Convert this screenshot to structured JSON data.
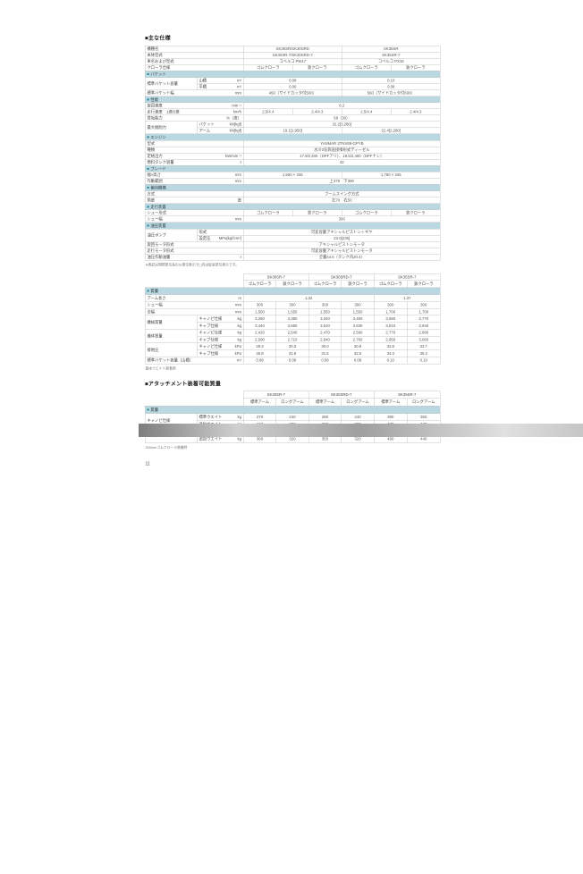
{
  "page": {
    "title": "■主な仕様",
    "attachment_title": "■アタッチメント装着可能質量",
    "footnote_si": "※表記は国際単位系のSI単位表示で[ ]内は従来単位表示です。",
    "footnote_base_weight": "基本ウエイト装着時",
    "footnote_rubber_crawler": "300mmゴムクローラ装着時",
    "page_number": "11"
  },
  "colors": {
    "section_band": "#b9d8e1",
    "section_marker": "#15808f",
    "table_border": "#c6c6c6",
    "text": "#444444"
  },
  "tables": {
    "spec": {
      "rows": [
        {
          "cells": [
            {
              "t": "機種名",
              "k": "h",
              "cs": 2
            },
            {
              "t": "SK30SR/SK30SRD",
              "cs": 2
            },
            {
              "t": "SK35SR",
              "cs": 2
            }
          ]
        },
        {
          "cells": [
            {
              "t": "本体型式",
              "k": "h",
              "cs": 2
            },
            {
              "t": "SK30SR-7/SK30SRD-7",
              "cs": 2
            },
            {
              "t": "SK35SR-7",
              "cs": 2
            }
          ]
        },
        {
          "cells": [
            {
              "t": "車名および型式",
              "k": "h",
              "cs": 2
            },
            {
              "t": "コベルコ PW17",
              "cs": 2
            },
            {
              "t": "コベルコ PX18",
              "cs": 2
            }
          ]
        },
        {
          "cells": [
            {
              "t": "クローラ仕様",
              "k": "h",
              "cs": 2
            },
            {
              "t": "ゴムクローラ"
            },
            {
              "t": "鉄クローラ"
            },
            {
              "t": "ゴムクローラ"
            },
            {
              "t": "鉄クローラ"
            }
          ]
        },
        {
          "band": "バケット"
        },
        {
          "cells": [
            {
              "t": "標準バケット容量",
              "k": "h",
              "rs": 2
            },
            {
              "t": "山積",
              "u": "m³",
              "k": "s"
            },
            {
              "t": "0.08",
              "cs": 2
            },
            {
              "t": "0.10",
              "cs": 2
            }
          ]
        },
        {
          "cells": [
            {
              "t": "平積",
              "u": "m³",
              "k": "s"
            },
            {
              "t": "0.06",
              "cs": 2
            },
            {
              "t": "0.08",
              "cs": 2
            }
          ]
        },
        {
          "cells": [
            {
              "t": "標準バケット幅",
              "u": "mm",
              "k": "h",
              "cs": 2
            },
            {
              "t": "450（サイドカッタ付500）",
              "cs": 2
            },
            {
              "t": "560（サイドカッタ付600）",
              "cs": 2
            }
          ]
        },
        {
          "band": "性能"
        },
        {
          "cells": [
            {
              "t": "旋回速度",
              "u": "min⁻¹",
              "k": "h",
              "cs": 2
            },
            {
              "t": "8.2",
              "cs": 4
            }
          ]
        },
        {
          "cells": [
            {
              "t": "走行速度　1速/2速",
              "u": "km/h",
              "k": "h",
              "cs": 2
            },
            {
              "t": "2.5/4.4"
            },
            {
              "t": "2.4/4.3"
            },
            {
              "t": "2.5/4.4"
            },
            {
              "t": "2.4/4.3"
            }
          ]
        },
        {
          "cells": [
            {
              "t": "登坂能力",
              "u": "%（度）",
              "k": "h",
              "cs": 2
            },
            {
              "t": "58（30）",
              "cs": 4
            }
          ]
        },
        {
          "cells": [
            {
              "t": "最大掘削力",
              "k": "h",
              "rs": 2
            },
            {
              "t": "バケット",
              "u": "kN[kgf]",
              "k": "s"
            },
            {
              "t": "32.2[3,280]",
              "cs": 4
            }
          ]
        },
        {
          "cells": [
            {
              "t": "アーム",
              "u": "kN[kgf]",
              "k": "s"
            },
            {
              "t": "19.1[1,950]",
              "cs": 2
            },
            {
              "t": "22.4[2,280]",
              "cs": 2
            }
          ]
        },
        {
          "band": "エンジン"
        },
        {
          "cells": [
            {
              "t": "型式",
              "k": "h",
              "cs": 2
            },
            {
              "t": "YANMAR 3TNV88-GPYB",
              "cs": 4
            }
          ]
        },
        {
          "cells": [
            {
              "t": "種類",
              "k": "h",
              "cs": 2
            },
            {
              "t": "水冷3気筒直接噴射式ディーゼル",
              "cs": 4
            }
          ]
        },
        {
          "cells": [
            {
              "t": "定格出力",
              "u": "kW/min⁻¹",
              "k": "h",
              "cs": 2
            },
            {
              "t": "17.9/2,400（DPFアリ）、18.5/2,400（DPFナシ）",
              "cs": 4
            }
          ]
        },
        {
          "cells": [
            {
              "t": "燃料タンク容量",
              "u": "ℓ",
              "k": "h",
              "cs": 2
            },
            {
              "t": "42",
              "cs": 4
            }
          ]
        },
        {
          "band": "ブレード"
        },
        {
          "cells": [
            {
              "t": "幅×高さ",
              "u": "mm",
              "k": "h",
              "cs": 2
            },
            {
              "t": "1,550 × 345",
              "cs": 2
            },
            {
              "t": "1,780 × 345",
              "cs": 2
            }
          ]
        },
        {
          "cells": [
            {
              "t": "作動範囲",
              "u": "mm",
              "k": "h",
              "cs": 2
            },
            {
              "t": "上470　下390",
              "cs": 4
            }
          ]
        },
        {
          "band": "偏向機構"
        },
        {
          "cells": [
            {
              "t": "方式",
              "k": "h",
              "cs": 2
            },
            {
              "t": "ブームスイング方式",
              "cs": 4
            }
          ]
        },
        {
          "cells": [
            {
              "t": "角度",
              "u": "度",
              "k": "h",
              "cs": 2
            },
            {
              "t": "左70　右50",
              "cs": 4
            }
          ]
        },
        {
          "band": "走行装置"
        },
        {
          "cells": [
            {
              "t": "シュー形式",
              "k": "h",
              "cs": 2
            },
            {
              "t": "ゴムクローラ"
            },
            {
              "t": "鉄クローラ"
            },
            {
              "t": "ゴムクローラ"
            },
            {
              "t": "鉄クローラ"
            }
          ]
        },
        {
          "cells": [
            {
              "t": "シュー幅",
              "u": "mm",
              "k": "h",
              "cs": 2
            },
            {
              "t": "300",
              "cs": 4
            }
          ]
        },
        {
          "band": "油圧装置"
        },
        {
          "cells": [
            {
              "t": "油圧ポンプ",
              "k": "h",
              "rs": 2
            },
            {
              "t": "形式",
              "k": "s"
            },
            {
              "t": "可変容量アキシャルピストン＋ギヤ",
              "cs": 4
            }
          ]
        },
        {
          "cells": [
            {
              "t": "設定圧",
              "u": "MPa[kgf/cm²]",
              "k": "s"
            },
            {
              "t": "23.0[235]",
              "cs": 4
            }
          ]
        },
        {
          "cells": [
            {
              "t": "旋回モータ形式",
              "k": "h",
              "cs": 2
            },
            {
              "t": "アキシャルピストンモータ",
              "cs": 4
            }
          ]
        },
        {
          "cells": [
            {
              "t": "走行モータ形式",
              "k": "h",
              "cs": 2
            },
            {
              "t": "可変容量アキシャルピストンモータ",
              "cs": 4
            }
          ]
        },
        {
          "cells": [
            {
              "t": "油圧作動油量",
              "u": "ℓ",
              "k": "h",
              "cs": 2
            },
            {
              "t": "全量44.6（タンク内20.4）",
              "cs": 4
            }
          ]
        }
      ]
    },
    "weights": {
      "rows": [
        {
          "cells": [
            {
              "t": "",
              "k": "corner",
              "cs": 2,
              "rs": 2
            },
            {
              "t": "SK30SR-7",
              "k": "mh",
              "cs": 2
            },
            {
              "t": "SK30SRD-7",
              "k": "mh",
              "cs": 2
            },
            {
              "t": "SK35SR-7",
              "k": "mh",
              "cs": 2
            }
          ]
        },
        {
          "cells": [
            {
              "t": "ゴムクローラ",
              "k": "mh"
            },
            {
              "t": "鉄クローラ",
              "k": "mh"
            },
            {
              "t": "ゴムクローラ",
              "k": "mh"
            },
            {
              "t": "鉄クローラ",
              "k": "mh"
            },
            {
              "t": "ゴムクローラ",
              "k": "mh"
            },
            {
              "t": "鉄クローラ",
              "k": "mh"
            }
          ]
        },
        {
          "band": "質量"
        },
        {
          "cells": [
            {
              "t": "アーム長さ",
              "u": "m",
              "k": "h",
              "cs": 2
            },
            {
              "t": "1.32",
              "cs": 4
            },
            {
              "t": "1.37",
              "cs": 2
            }
          ]
        },
        {
          "cells": [
            {
              "t": "シュー幅",
              "u": "mm",
              "k": "h",
              "cs": 2
            },
            {
              "t": "300"
            },
            {
              "t": "300"
            },
            {
              "t": "300"
            },
            {
              "t": "300"
            },
            {
              "t": "300"
            },
            {
              "t": "300"
            }
          ]
        },
        {
          "cells": [
            {
              "t": "全幅",
              "u": "mm",
              "k": "h",
              "cs": 2
            },
            {
              "t": "1,550"
            },
            {
              "t": "1,550"
            },
            {
              "t": "1,550"
            },
            {
              "t": "1,550"
            },
            {
              "t": "1,700"
            },
            {
              "t": "1,700"
            }
          ]
        },
        {
          "cells": [
            {
              "t": "機械質量",
              "k": "h",
              "rs": 2
            },
            {
              "t": "キャノピ仕様",
              "u": "kg",
              "k": "s"
            },
            {
              "t": "3,260"
            },
            {
              "t": "3,380"
            },
            {
              "t": "3,340"
            },
            {
              "t": "3,460"
            },
            {
              "t": "3,650"
            },
            {
              "t": "3,770"
            }
          ]
        },
        {
          "cells": [
            {
              "t": "キャブ仕様",
              "u": "kg",
              "k": "s"
            },
            {
              "t": "3,440"
            },
            {
              "t": "3,560"
            },
            {
              "t": "3,510"
            },
            {
              "t": "3,630"
            },
            {
              "t": "3,810"
            },
            {
              "t": "3,940"
            }
          ]
        },
        {
          "cells": [
            {
              "t": "機体質量",
              "k": "h",
              "rs": 2
            },
            {
              "t": "キャノピ仕様",
              "u": "kg",
              "k": "s"
            },
            {
              "t": "2,420"
            },
            {
              "t": "2,540"
            },
            {
              "t": "2,470"
            },
            {
              "t": "2,590"
            },
            {
              "t": "2,770"
            },
            {
              "t": "2,890"
            }
          ]
        },
        {
          "cells": [
            {
              "t": "キャブ仕様",
              "u": "kg",
              "k": "s"
            },
            {
              "t": "2,590"
            },
            {
              "t": "2,710"
            },
            {
              "t": "2,640"
            },
            {
              "t": "2,760"
            },
            {
              "t": "2,950"
            },
            {
              "t": "3,060"
            }
          ]
        },
        {
          "cells": [
            {
              "t": "接地圧",
              "k": "h",
              "rs": 2
            },
            {
              "t": "キャノピ仕様",
              "u": "kPa",
              "k": "s"
            },
            {
              "t": "29.3"
            },
            {
              "t": "30.3"
            },
            {
              "t": "30.0"
            },
            {
              "t": "30.9"
            },
            {
              "t": "32.8"
            },
            {
              "t": "33.7"
            }
          ]
        },
        {
          "cells": [
            {
              "t": "キャブ仕様",
              "u": "kPa",
              "k": "s"
            },
            {
              "t": "30.8"
            },
            {
              "t": "31.8"
            },
            {
              "t": "31.5"
            },
            {
              "t": "32.5"
            },
            {
              "t": "34.3"
            },
            {
              "t": "35.2"
            }
          ]
        },
        {
          "cells": [
            {
              "t": "標準バケット容量（山積）",
              "u": "m³",
              "k": "h",
              "cs": 2
            },
            {
              "t": "0.08"
            },
            {
              "t": "0.08"
            },
            {
              "t": "0.08"
            },
            {
              "t": "0.08"
            },
            {
              "t": "0.10"
            },
            {
              "t": "0.10"
            }
          ]
        }
      ]
    },
    "attachments": {
      "rows": [
        {
          "cells": [
            {
              "t": "",
              "k": "corner",
              "cs": 2,
              "rs": 2
            },
            {
              "t": "SK30SR-7",
              "k": "mh",
              "cs": 2
            },
            {
              "t": "SK30SRD-7",
              "k": "mh",
              "cs": 2
            },
            {
              "t": "SK35SR-7",
              "k": "mh",
              "cs": 2
            }
          ]
        },
        {
          "cells": [
            {
              "t": "標準アーム",
              "k": "mh"
            },
            {
              "t": "ロングアーム",
              "k": "mh"
            },
            {
              "t": "標準アーム",
              "k": "mh"
            },
            {
              "t": "ロングアーム",
              "k": "mh"
            },
            {
              "t": "標準アーム",
              "k": "mh"
            },
            {
              "t": "ロングアーム",
              "k": "mh"
            }
          ]
        },
        {
          "band": "質量"
        },
        {
          "cells": [
            {
              "t": "キャノピ仕様",
              "k": "h",
              "rs": 2
            },
            {
              "t": "標準ウエイト",
              "u": "kg",
              "k": "s"
            },
            {
              "t": "270"
            },
            {
              "t": "240"
            },
            {
              "t": "280"
            },
            {
              "t": "240"
            },
            {
              "t": "390"
            },
            {
              "t": "350"
            }
          ]
        },
        {
          "cells": [
            {
              "t": "追加ウエイト",
              "u": "kg",
              "k": "s"
            },
            {
              "t": "340"
            },
            {
              "t": "300"
            },
            {
              "t": "330"
            },
            {
              "t": "300"
            },
            {
              "t": "470"
            },
            {
              "t": "420"
            }
          ]
        },
        {
          "cells": [
            {
              "t": "キャブ仕様",
              "k": "h",
              "rs": 2
            },
            {
              "t": "標準ウエイト",
              "u": "kg",
              "k": "s"
            },
            {
              "t": "290"
            },
            {
              "t": "250"
            },
            {
              "t": "280"
            },
            {
              "t": "250"
            },
            {
              "t": "410"
            },
            {
              "t": "370"
            }
          ]
        },
        {
          "cells": [
            {
              "t": "追加ウエイト",
              "u": "kg",
              "k": "s"
            },
            {
              "t": "360"
            },
            {
              "t": "320"
            },
            {
              "t": "350"
            },
            {
              "t": "320"
            },
            {
              "t": "490"
            },
            {
              "t": "440"
            }
          ]
        }
      ]
    }
  }
}
